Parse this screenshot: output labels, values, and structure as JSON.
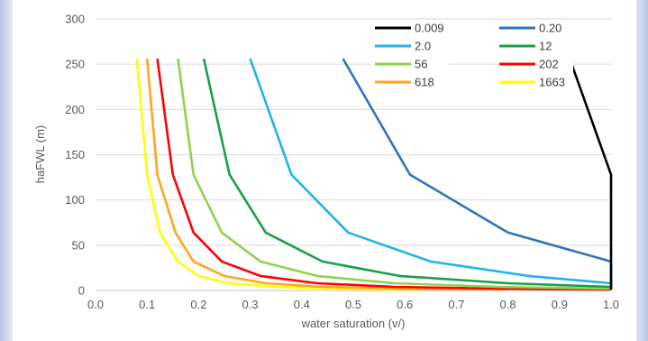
{
  "chart_data": {
    "type": "line",
    "title": "",
    "xlabel": "water saturation (v/)",
    "ylabel": "haFWL (m)",
    "xlim": [
      0.0,
      1.0
    ],
    "ylim": [
      0,
      300
    ],
    "x_ticks": [
      "0.0",
      "0.1",
      "0.2",
      "0.3",
      "0.4",
      "0.5",
      "0.6",
      "0.7",
      "0.8",
      "0.9",
      "1.0"
    ],
    "y_ticks": [
      "0",
      "50",
      "100",
      "150",
      "200",
      "250",
      "300"
    ],
    "grid": "horizontal",
    "legend_position": "top-right",
    "series": [
      {
        "name": "0.009",
        "color": "#000000",
        "points": [
          [
            0.92,
            256
          ],
          [
            1.0,
            128
          ],
          [
            1.0,
            64
          ],
          [
            1.0,
            32
          ],
          [
            1.0,
            16
          ],
          [
            1.0,
            8
          ],
          [
            1.0,
            4
          ],
          [
            1.0,
            2
          ],
          [
            1.0,
            1
          ]
        ]
      },
      {
        "name": "0.20",
        "color": "#2e75b6",
        "points": [
          [
            0.48,
            256
          ],
          [
            0.61,
            128
          ],
          [
            0.8,
            64
          ],
          [
            1.0,
            32
          ],
          [
            1.0,
            16
          ],
          [
            1.0,
            8
          ],
          [
            1.0,
            4
          ],
          [
            1.0,
            2
          ],
          [
            1.0,
            1
          ]
        ]
      },
      {
        "name": "2.0",
        "color": "#1fb4e8",
        "points": [
          [
            0.3,
            256
          ],
          [
            0.38,
            128
          ],
          [
            0.49,
            64
          ],
          [
            0.65,
            32
          ],
          [
            0.84,
            16
          ],
          [
            1.0,
            8
          ],
          [
            1.0,
            4
          ],
          [
            1.0,
            2
          ],
          [
            1.0,
            1
          ]
        ]
      },
      {
        "name": "12",
        "color": "#17a04a",
        "points": [
          [
            0.21,
            256
          ],
          [
            0.26,
            128
          ],
          [
            0.33,
            64
          ],
          [
            0.44,
            32
          ],
          [
            0.59,
            16
          ],
          [
            0.8,
            8
          ],
          [
            1.0,
            4
          ],
          [
            1.0,
            2
          ],
          [
            1.0,
            1
          ]
        ]
      },
      {
        "name": "56",
        "color": "#92d050",
        "points": [
          [
            0.16,
            256
          ],
          [
            0.19,
            128
          ],
          [
            0.245,
            64
          ],
          [
            0.32,
            32
          ],
          [
            0.43,
            16
          ],
          [
            0.58,
            8
          ],
          [
            0.78,
            4
          ],
          [
            1.0,
            2
          ],
          [
            1.0,
            1
          ]
        ]
      },
      {
        "name": "202",
        "color": "#ff0000",
        "points": [
          [
            0.12,
            256
          ],
          [
            0.15,
            128
          ],
          [
            0.19,
            64
          ],
          [
            0.245,
            32
          ],
          [
            0.32,
            16
          ],
          [
            0.43,
            8
          ],
          [
            0.58,
            4
          ],
          [
            0.78,
            2
          ],
          [
            1.0,
            1
          ]
        ]
      },
      {
        "name": "618",
        "color": "#ffa51f",
        "points": [
          [
            0.1,
            256
          ],
          [
            0.12,
            128
          ],
          [
            0.155,
            64
          ],
          [
            0.19,
            32
          ],
          [
            0.25,
            16
          ],
          [
            0.33,
            8
          ],
          [
            0.44,
            4
          ],
          [
            0.6,
            2
          ],
          [
            0.8,
            1
          ]
        ]
      },
      {
        "name": "1663",
        "color": "#ffff00",
        "points": [
          [
            0.08,
            256
          ],
          [
            0.1,
            128
          ],
          [
            0.125,
            64
          ],
          [
            0.16,
            32
          ],
          [
            0.2,
            16
          ],
          [
            0.26,
            8
          ],
          [
            0.35,
            4
          ],
          [
            0.47,
            2
          ],
          [
            0.63,
            1
          ]
        ]
      }
    ]
  }
}
